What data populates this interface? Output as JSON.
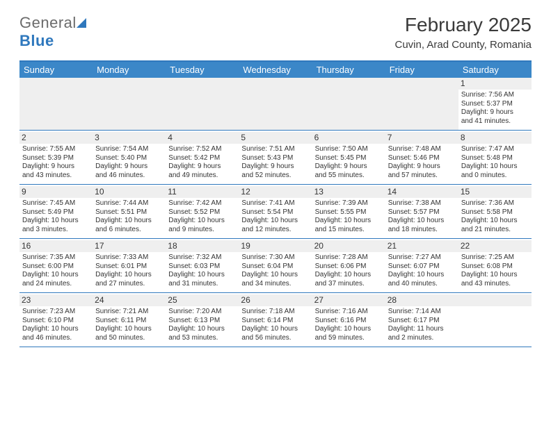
{
  "brand": {
    "word1": "General",
    "word2": "Blue"
  },
  "title": "February 2025",
  "location": "Cuvin, Arad County, Romania",
  "colors": {
    "header_blue": "#3b87c8",
    "rule_blue": "#2f78bd",
    "stripe_grey": "#efefef",
    "text": "#333333"
  },
  "dayNames": [
    "Sunday",
    "Monday",
    "Tuesday",
    "Wednesday",
    "Thursday",
    "Friday",
    "Saturday"
  ],
  "firstRow": {
    "blanks": 6,
    "day": {
      "n": "1",
      "sunrise": "Sunrise: 7:56 AM",
      "sunset": "Sunset: 5:37 PM",
      "daylight1": "Daylight: 9 hours",
      "daylight2": "and 41 minutes."
    }
  },
  "weeks": [
    [
      {
        "n": "2",
        "sunrise": "Sunrise: 7:55 AM",
        "sunset": "Sunset: 5:39 PM",
        "daylight1": "Daylight: 9 hours",
        "daylight2": "and 43 minutes."
      },
      {
        "n": "3",
        "sunrise": "Sunrise: 7:54 AM",
        "sunset": "Sunset: 5:40 PM",
        "daylight1": "Daylight: 9 hours",
        "daylight2": "and 46 minutes."
      },
      {
        "n": "4",
        "sunrise": "Sunrise: 7:52 AM",
        "sunset": "Sunset: 5:42 PM",
        "daylight1": "Daylight: 9 hours",
        "daylight2": "and 49 minutes."
      },
      {
        "n": "5",
        "sunrise": "Sunrise: 7:51 AM",
        "sunset": "Sunset: 5:43 PM",
        "daylight1": "Daylight: 9 hours",
        "daylight2": "and 52 minutes."
      },
      {
        "n": "6",
        "sunrise": "Sunrise: 7:50 AM",
        "sunset": "Sunset: 5:45 PM",
        "daylight1": "Daylight: 9 hours",
        "daylight2": "and 55 minutes."
      },
      {
        "n": "7",
        "sunrise": "Sunrise: 7:48 AM",
        "sunset": "Sunset: 5:46 PM",
        "daylight1": "Daylight: 9 hours",
        "daylight2": "and 57 minutes."
      },
      {
        "n": "8",
        "sunrise": "Sunrise: 7:47 AM",
        "sunset": "Sunset: 5:48 PM",
        "daylight1": "Daylight: 10 hours",
        "daylight2": "and 0 minutes."
      }
    ],
    [
      {
        "n": "9",
        "sunrise": "Sunrise: 7:45 AM",
        "sunset": "Sunset: 5:49 PM",
        "daylight1": "Daylight: 10 hours",
        "daylight2": "and 3 minutes."
      },
      {
        "n": "10",
        "sunrise": "Sunrise: 7:44 AM",
        "sunset": "Sunset: 5:51 PM",
        "daylight1": "Daylight: 10 hours",
        "daylight2": "and 6 minutes."
      },
      {
        "n": "11",
        "sunrise": "Sunrise: 7:42 AM",
        "sunset": "Sunset: 5:52 PM",
        "daylight1": "Daylight: 10 hours",
        "daylight2": "and 9 minutes."
      },
      {
        "n": "12",
        "sunrise": "Sunrise: 7:41 AM",
        "sunset": "Sunset: 5:54 PM",
        "daylight1": "Daylight: 10 hours",
        "daylight2": "and 12 minutes."
      },
      {
        "n": "13",
        "sunrise": "Sunrise: 7:39 AM",
        "sunset": "Sunset: 5:55 PM",
        "daylight1": "Daylight: 10 hours",
        "daylight2": "and 15 minutes."
      },
      {
        "n": "14",
        "sunrise": "Sunrise: 7:38 AM",
        "sunset": "Sunset: 5:57 PM",
        "daylight1": "Daylight: 10 hours",
        "daylight2": "and 18 minutes."
      },
      {
        "n": "15",
        "sunrise": "Sunrise: 7:36 AM",
        "sunset": "Sunset: 5:58 PM",
        "daylight1": "Daylight: 10 hours",
        "daylight2": "and 21 minutes."
      }
    ],
    [
      {
        "n": "16",
        "sunrise": "Sunrise: 7:35 AM",
        "sunset": "Sunset: 6:00 PM",
        "daylight1": "Daylight: 10 hours",
        "daylight2": "and 24 minutes."
      },
      {
        "n": "17",
        "sunrise": "Sunrise: 7:33 AM",
        "sunset": "Sunset: 6:01 PM",
        "daylight1": "Daylight: 10 hours",
        "daylight2": "and 27 minutes."
      },
      {
        "n": "18",
        "sunrise": "Sunrise: 7:32 AM",
        "sunset": "Sunset: 6:03 PM",
        "daylight1": "Daylight: 10 hours",
        "daylight2": "and 31 minutes."
      },
      {
        "n": "19",
        "sunrise": "Sunrise: 7:30 AM",
        "sunset": "Sunset: 6:04 PM",
        "daylight1": "Daylight: 10 hours",
        "daylight2": "and 34 minutes."
      },
      {
        "n": "20",
        "sunrise": "Sunrise: 7:28 AM",
        "sunset": "Sunset: 6:06 PM",
        "daylight1": "Daylight: 10 hours",
        "daylight2": "and 37 minutes."
      },
      {
        "n": "21",
        "sunrise": "Sunrise: 7:27 AM",
        "sunset": "Sunset: 6:07 PM",
        "daylight1": "Daylight: 10 hours",
        "daylight2": "and 40 minutes."
      },
      {
        "n": "22",
        "sunrise": "Sunrise: 7:25 AM",
        "sunset": "Sunset: 6:08 PM",
        "daylight1": "Daylight: 10 hours",
        "daylight2": "and 43 minutes."
      }
    ],
    [
      {
        "n": "23",
        "sunrise": "Sunrise: 7:23 AM",
        "sunset": "Sunset: 6:10 PM",
        "daylight1": "Daylight: 10 hours",
        "daylight2": "and 46 minutes."
      },
      {
        "n": "24",
        "sunrise": "Sunrise: 7:21 AM",
        "sunset": "Sunset: 6:11 PM",
        "daylight1": "Daylight: 10 hours",
        "daylight2": "and 50 minutes."
      },
      {
        "n": "25",
        "sunrise": "Sunrise: 7:20 AM",
        "sunset": "Sunset: 6:13 PM",
        "daylight1": "Daylight: 10 hours",
        "daylight2": "and 53 minutes."
      },
      {
        "n": "26",
        "sunrise": "Sunrise: 7:18 AM",
        "sunset": "Sunset: 6:14 PM",
        "daylight1": "Daylight: 10 hours",
        "daylight2": "and 56 minutes."
      },
      {
        "n": "27",
        "sunrise": "Sunrise: 7:16 AM",
        "sunset": "Sunset: 6:16 PM",
        "daylight1": "Daylight: 10 hours",
        "daylight2": "and 59 minutes."
      },
      {
        "n": "28",
        "sunrise": "Sunrise: 7:14 AM",
        "sunset": "Sunset: 6:17 PM",
        "daylight1": "Daylight: 11 hours",
        "daylight2": "and 2 minutes."
      },
      null
    ]
  ]
}
